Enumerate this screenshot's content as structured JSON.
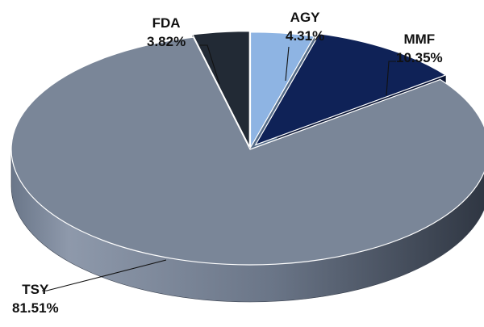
{
  "chart_data": {
    "type": "pie",
    "style": "3d",
    "title": "",
    "legend": "none",
    "slices": [
      {
        "name": "AGY",
        "value": 4.31,
        "label": "4.31%",
        "color": "#8EB4E3"
      },
      {
        "name": "MMF",
        "value": 10.35,
        "label": "10.35%",
        "color": "#0F2257"
      },
      {
        "name": "TSY",
        "value": 81.51,
        "label": "81.51%",
        "color": "#7A8698"
      },
      {
        "name": "FDA",
        "value": 3.82,
        "label": "3.82%",
        "color": "#222A35"
      }
    ]
  }
}
